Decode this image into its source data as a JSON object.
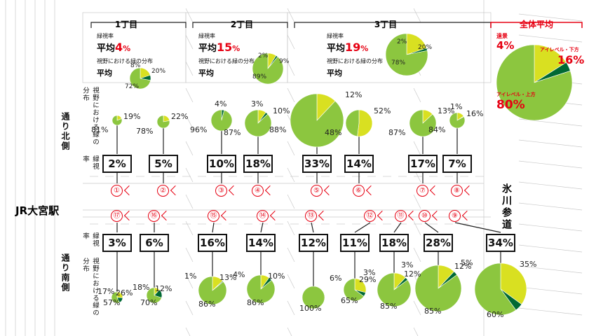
{
  "colors": {
    "accent": "#e60012",
    "green_low": "#8cc63f",
    "green_mid": "#006934",
    "yellow": "#d9e021"
  },
  "station": "JR大宮駅",
  "sando": "氷川参道",
  "north_side": "通り北側",
  "south_side": "通り南側",
  "row_label_dist": "視野における緑の分布",
  "row_label_rate": "緑視率",
  "sections": [
    {
      "title": "1丁目",
      "rate_label": "緑視率",
      "avg_prefix": "平均",
      "avg_value": "4",
      "avg_unit": "%",
      "dist_label": "視野における緑の分布",
      "dist_avg": "平均",
      "pie": [
        72,
        8,
        20
      ],
      "pie_labels": [
        "72%",
        "8%",
        "20%"
      ]
    },
    {
      "title": "2丁目",
      "rate_label": "緑視率",
      "avg_prefix": "平均",
      "avg_value": "15",
      "avg_unit": "%",
      "dist_label": "視野における緑の分布",
      "dist_avg": "平均",
      "pie": [
        89,
        2,
        9
      ],
      "pie_labels": [
        "89%",
        "2%",
        "9%"
      ]
    },
    {
      "title": "3丁目",
      "rate_label": "緑視率",
      "avg_prefix": "平均",
      "avg_value": "19",
      "avg_unit": "%",
      "dist_label": "視野における緑の分布",
      "dist_avg": "平均",
      "pie": [
        78,
        2,
        20
      ],
      "pie_labels": [
        "78%",
        "2%",
        "20%"
      ]
    }
  ],
  "overall": {
    "title": "全体平均",
    "far_label": "遠景",
    "far_value": "4%",
    "eye_upper_label": "アイレベル・上方",
    "eye_upper_value": "80%",
    "eye_lower_label": "アイレベル・下方",
    "eye_lower_value": "16%",
    "pie": [
      80,
      4,
      16
    ]
  },
  "north_points": [
    {
      "num": "①",
      "rate": "2%",
      "pie": [
        81,
        0,
        19
      ],
      "labels": [
        "81%",
        "",
        "19%"
      ]
    },
    {
      "num": "②",
      "rate": "5%",
      "pie": [
        78,
        0,
        22
      ],
      "labels": [
        "78%",
        "",
        "22%"
      ]
    },
    {
      "num": "③",
      "rate": "10%",
      "pie": [
        96,
        4,
        0
      ],
      "labels": [
        "96%",
        "4%",
        ""
      ]
    },
    {
      "num": "④",
      "rate": "18%",
      "pie": [
        87,
        3,
        10
      ],
      "labels": [
        "87%",
        "3%",
        "10%"
      ]
    },
    {
      "num": "⑤",
      "rate": "33%",
      "pie": [
        88,
        0,
        12
      ],
      "labels": [
        "88%",
        "",
        "12%"
      ]
    },
    {
      "num": "⑥",
      "rate": "14%",
      "pie": [
        48,
        0,
        52
      ],
      "labels": [
        "48%",
        "",
        "52%"
      ]
    },
    {
      "num": "⑦",
      "rate": "17%",
      "pie": [
        87,
        0,
        13
      ],
      "labels": [
        "87%",
        "",
        "13%"
      ]
    },
    {
      "num": "⑧",
      "rate": "7%",
      "pie": [
        84,
        1,
        16
      ],
      "labels": [
        "84%",
        "1%",
        "16%"
      ]
    }
  ],
  "south_points": [
    {
      "num": "⑰",
      "rate": "3%",
      "pie": [
        57,
        17,
        26
      ],
      "labels": [
        "57%",
        "17%",
        "26%"
      ]
    },
    {
      "num": "⑯",
      "rate": "6%",
      "pie": [
        70,
        18,
        12
      ],
      "labels": [
        "70%",
        "18%",
        "12%"
      ]
    },
    {
      "num": "⑮",
      "rate": "16%",
      "pie": [
        86,
        1,
        13
      ],
      "labels": [
        "86%",
        "1%",
        "13%"
      ]
    },
    {
      "num": "⑭",
      "rate": "14%",
      "pie": [
        86,
        4,
        10
      ],
      "labels": [
        "86%",
        "4%",
        "10%"
      ]
    },
    {
      "num": "⑬",
      "rate": "12%",
      "pie": [
        100,
        0,
        0
      ],
      "labels": [
        "100%",
        "",
        ""
      ]
    },
    {
      "num": "⑫",
      "rate": "11%",
      "pie": [
        65,
        6,
        29
      ],
      "labels": [
        "65%",
        "6%",
        "29%"
      ]
    },
    {
      "num": "⑪",
      "rate": "18%",
      "pie": [
        85,
        3,
        12
      ],
      "labels": [
        "85%",
        "3%",
        "12%"
      ]
    },
    {
      "num": "⑩",
      "rate": "28%",
      "pie": [
        85,
        3,
        12
      ],
      "labels": [
        "85%",
        "3%",
        "12%"
      ]
    },
    {
      "num": "⑨",
      "rate": "34%",
      "pie": [
        60,
        5,
        35
      ],
      "labels": [
        "60%",
        "5%",
        "35%"
      ]
    }
  ]
}
